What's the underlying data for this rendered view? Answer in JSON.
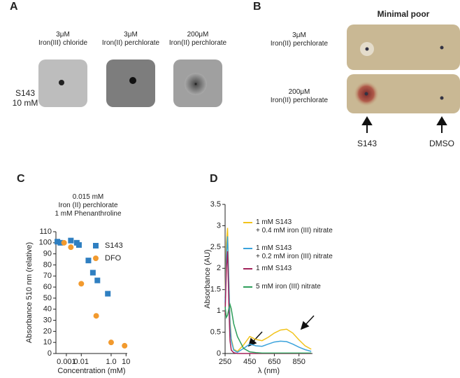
{
  "panels": {
    "a": {
      "letter": "A",
      "sample": "S143\n10 mM",
      "conditions": [
        "3μM\nIron(III) chloride",
        "3μM\nIron(II) perchlorate",
        "200μM\nIron(II) perchlorate"
      ]
    },
    "b": {
      "letter": "B",
      "title": "Minimal poor",
      "conditions": [
        "3μM\nIron(II) perchlorate",
        "200μM\nIron(II) perchlorate"
      ],
      "arrows": [
        "S143",
        "DMSO"
      ]
    }
  },
  "chart_data": [
    {
      "type": "scatter",
      "panel_label": "C",
      "title": "0.015 mM\nIron (II) perchlorate\n1 mM Phenanthroline",
      "x_label": "Concentration (mM)",
      "y_label": "Absorbance  510 nm (relative)",
      "xscale": "log",
      "xlim": [
        0.0002,
        12
      ],
      "xticks": [
        0.001,
        0.01,
        {
          "value": 1,
          "label": "1.0"
        },
        10
      ],
      "ylim": [
        0,
        110
      ],
      "yticks": [
        0,
        10,
        20,
        30,
        40,
        50,
        60,
        70,
        80,
        90,
        100,
        110
      ],
      "series": [
        {
          "name": "S143",
          "color": "#2f7fc1",
          "marker": "square",
          "x": [
            0.00025,
            0.0004,
            0.002,
            0.005,
            0.007,
            0.03,
            0.06,
            0.12,
            0.6
          ],
          "values": [
            101,
            100,
            102,
            100,
            98,
            84,
            73,
            66,
            54
          ]
        },
        {
          "name": "DFO",
          "color": "#f29a2e",
          "marker": "circle",
          "x": [
            0.0007,
            0.002,
            0.01,
            0.1,
            1,
            8
          ],
          "values": [
            100,
            96,
            63,
            34,
            10,
            7
          ]
        }
      ]
    },
    {
      "type": "line",
      "panel_label": "D",
      "x_label": "λ (nm)",
      "y_label": "Absorbance (AU)",
      "xlim": [
        250,
        960
      ],
      "xticks": [
        250,
        450,
        650,
        850
      ],
      "ylim": [
        0,
        3.5
      ],
      "yticks": [
        0,
        0.5,
        1,
        1.5,
        2,
        2.5,
        3,
        3.5
      ],
      "x": [
        250,
        260,
        270,
        280,
        290,
        300,
        320,
        350,
        400,
        450,
        500,
        550,
        600,
        650,
        700,
        750,
        800,
        850,
        900,
        950
      ],
      "series": [
        {
          "name": "1 mM S143\n+ 0.4 mM iron (III) nitrate",
          "color": "#f2c31b",
          "values": [
            1.3,
            2.6,
            2.95,
            1.8,
            0.8,
            0.35,
            0.1,
            0.05,
            0.2,
            0.4,
            0.33,
            0.3,
            0.38,
            0.48,
            0.55,
            0.57,
            0.48,
            0.32,
            0.18,
            0.1
          ]
        },
        {
          "name": "1 mM S143\n+ 0.2 mM iron (III) nitrate",
          "color": "#3ba3dc",
          "values": [
            1.2,
            2.3,
            2.75,
            1.7,
            0.7,
            0.3,
            0.08,
            0.03,
            0.12,
            0.22,
            0.18,
            0.17,
            0.22,
            0.27,
            0.29,
            0.28,
            0.22,
            0.15,
            0.09,
            0.05
          ]
        },
        {
          "name": "1 mM S143",
          "color": "#a3235a",
          "values": [
            0.9,
            2,
            2.4,
            1.2,
            0.3,
            0.08,
            0.02,
            0,
            0,
            0,
            0,
            0,
            0,
            0,
            0,
            0,
            0,
            0,
            0,
            0
          ]
        },
        {
          "name": "5 mM iron (III) nitrate",
          "color": "#2e9e5b",
          "values": [
            1.1,
            0.85,
            0.9,
            1.05,
            1.15,
            1.05,
            0.7,
            0.4,
            0.12,
            0.04,
            0.02,
            0.01,
            0.01,
            0.01,
            0.01,
            0.01,
            0.01,
            0.01,
            0.01,
            0.01
          ]
        }
      ]
    }
  ]
}
